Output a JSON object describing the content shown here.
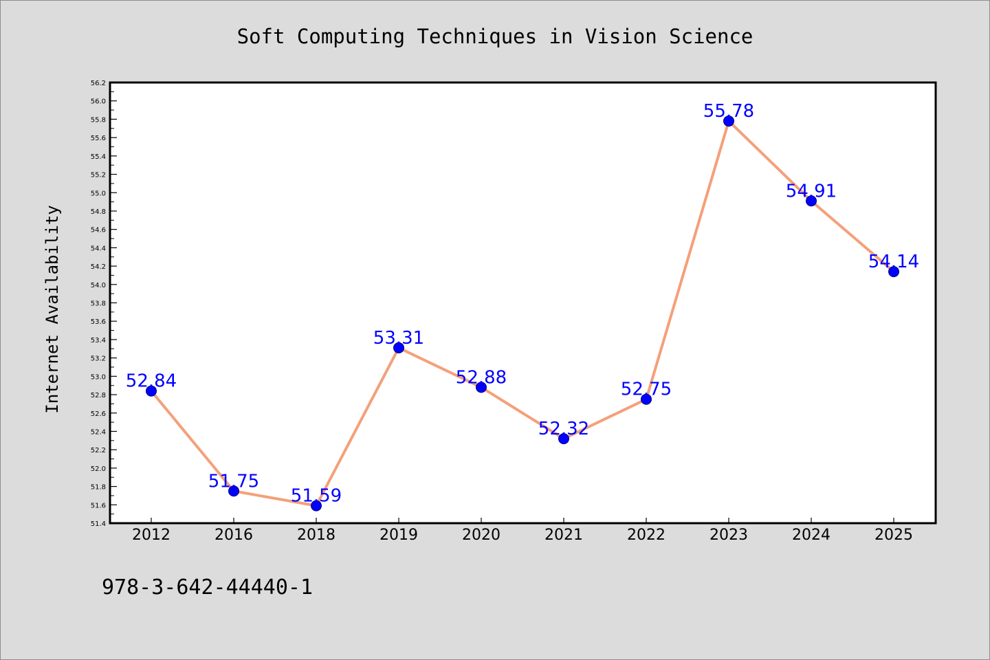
{
  "chart_data": {
    "type": "line",
    "title": "Soft Computing Techniques in Vision Science",
    "xlabel": "",
    "ylabel": "Internet Availability",
    "categories": [
      "2012",
      "2016",
      "2018",
      "2019",
      "2020",
      "2021",
      "2022",
      "2023",
      "2024",
      "2025"
    ],
    "series": [
      {
        "values": [
          52.84,
          51.75,
          51.59,
          53.31,
          52.88,
          52.32,
          52.75,
          55.78,
          54.91,
          54.14
        ],
        "line_color": "#f4a07a",
        "marker_color": "#0000ff"
      }
    ],
    "data_labels": [
      "52.84",
      "51.75",
      "51.59",
      "53.31",
      "52.88",
      "52.32",
      "52.75",
      "55.78",
      "54.91",
      "54.14"
    ],
    "ylim": [
      51.4,
      56.2
    ],
    "yticks": [
      "51.4",
      "51.6",
      "51.8",
      "52.0",
      "52.2",
      "52.4",
      "52.6",
      "52.8",
      "53.0",
      "53.2",
      "53.4",
      "53.6",
      "53.8",
      "54.0",
      "54.2",
      "54.4",
      "54.6",
      "54.8",
      "55.0",
      "55.2",
      "55.4",
      "55.6",
      "55.8",
      "56.0",
      "56.2"
    ],
    "grid": false,
    "legend": "none"
  },
  "footer": {
    "isbn": "978-3-642-44440-1"
  },
  "colors": {
    "page_background": "#dcdcdc",
    "plot_background": "#ffffff",
    "label_color": "#0000ff"
  }
}
